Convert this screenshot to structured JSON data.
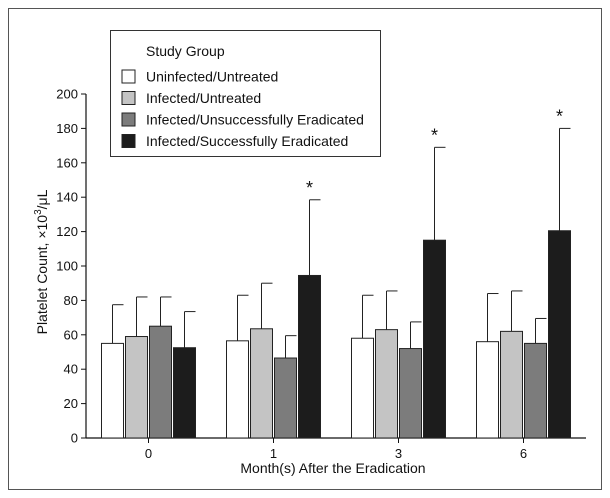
{
  "chart_data": {
    "type": "bar",
    "xlabel": "Month(s) After the Eradication",
    "ylabel_main": "Platelet Count, ×10",
    "ylabel_sup": "3",
    "ylabel_unit": "/μL",
    "ylim": [
      0,
      200
    ],
    "yticks": [
      0,
      20,
      40,
      60,
      80,
      100,
      120,
      140,
      160,
      180,
      200
    ],
    "ytick_labels": [
      "0",
      "20",
      "40",
      "60",
      "80",
      "100",
      "120",
      "140",
      "160",
      "180",
      "200"
    ],
    "categories": [
      "0",
      "1",
      "3",
      "6"
    ],
    "grid": false,
    "legend": {
      "title": "Study Group",
      "position": "top-left"
    },
    "series": [
      {
        "name": "Uninfected/Untreated",
        "color": "#ffffff",
        "values": [
          55,
          56.5,
          58,
          56
        ],
        "errors": [
          22.5,
          26.5,
          25,
          28
        ]
      },
      {
        "name": "Infected/Untreated",
        "color": "#c4c4c4",
        "values": [
          59,
          63.5,
          63,
          62
        ],
        "errors": [
          23,
          26.5,
          22.5,
          23.5
        ]
      },
      {
        "name": "Infected/Unsuccessfully Eradicated",
        "color": "#7c7c7c",
        "values": [
          65,
          46.5,
          52,
          55
        ],
        "errors": [
          17,
          13,
          15.5,
          14.5
        ]
      },
      {
        "name": "Infected/Successfully Eradicated",
        "color": "#1c1c1c",
        "values": [
          52.5,
          94.5,
          115,
          120.5
        ],
        "errors": [
          21,
          44,
          54,
          59.5
        ]
      }
    ],
    "annotations": [
      {
        "category": "1",
        "series": "Infected/Successfully Eradicated",
        "text": "*"
      },
      {
        "category": "3",
        "series": "Infected/Successfully Eradicated",
        "text": "*"
      },
      {
        "category": "6",
        "series": "Infected/Successfully Eradicated",
        "text": "*"
      }
    ]
  }
}
